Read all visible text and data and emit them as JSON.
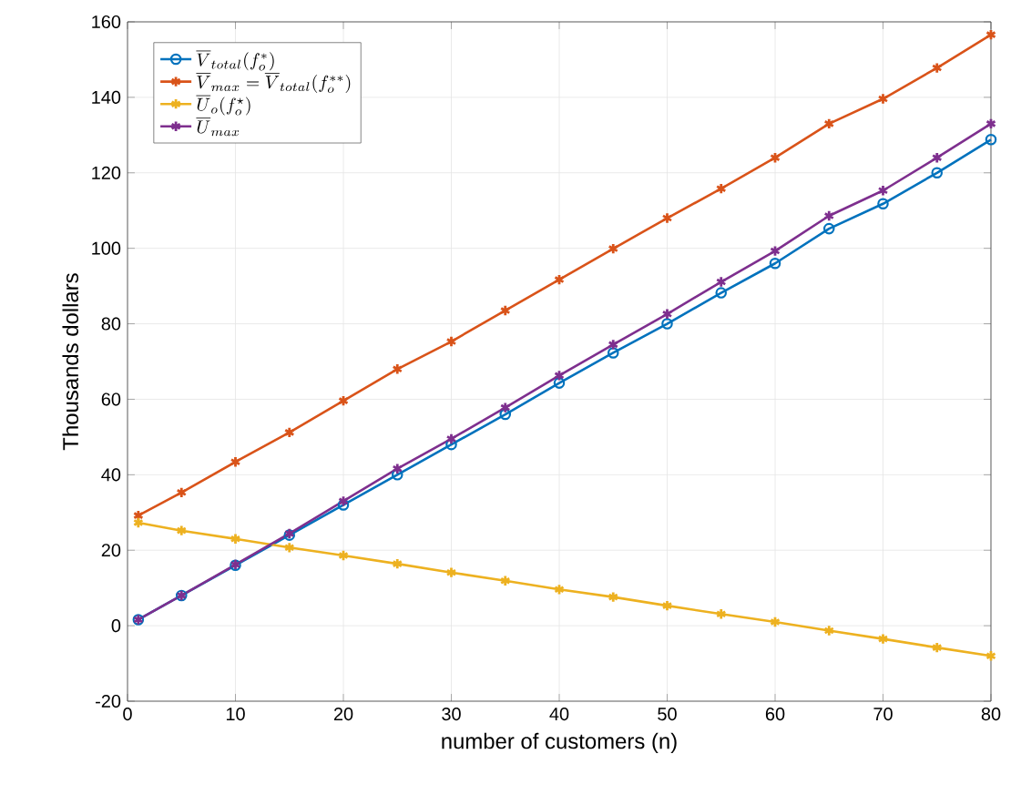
{
  "chart_data": {
    "type": "line",
    "xlabel": "number of customers (n)",
    "ylabel": "Thousands dollars",
    "x": [
      1,
      5,
      10,
      15,
      20,
      25,
      30,
      35,
      40,
      45,
      50,
      55,
      60,
      65,
      70,
      75,
      80
    ],
    "xlim": [
      0,
      80
    ],
    "ylim": [
      -20,
      160
    ],
    "xticks": [
      0,
      10,
      20,
      30,
      40,
      50,
      60,
      70,
      80
    ],
    "yticks": [
      -20,
      0,
      20,
      40,
      60,
      80,
      100,
      120,
      140,
      160
    ],
    "grid": true,
    "legend": "top left",
    "line_style": "solid",
    "series": [
      {
        "name": "\\overline{V}_{total}(f_o^{*})",
        "color": "#0072bd",
        "marker": "circle",
        "values": [
          1.6,
          8,
          16,
          24,
          32,
          40,
          48,
          56,
          64.3,
          72.3,
          80,
          88.2,
          96,
          105.2,
          111.8,
          120,
          128.8
        ]
      },
      {
        "name": "\\overline{V}_{max}=\\overline{V}_{total}(f_o^{**})",
        "color": "#d95319",
        "marker": "cross",
        "values": [
          29.2,
          35.3,
          43.4,
          51.2,
          59.6,
          68,
          75.3,
          83.5,
          91.7,
          99.9,
          108,
          115.8,
          124,
          133,
          139.6,
          147.8,
          156.6
        ]
      },
      {
        "name": "\\overline{U}_{o}(f_o^{\\star})",
        "color": "#edb120",
        "marker": "cross",
        "values": [
          27.3,
          25.2,
          23,
          20.7,
          18.6,
          16.4,
          14.1,
          11.9,
          9.6,
          7.6,
          5.3,
          3.1,
          1,
          -1.3,
          -3.5,
          -5.8,
          -8
        ]
      },
      {
        "name": "\\overline{U}_{max}",
        "color": "#7e2f8e",
        "marker": "cross",
        "values": [
          1.6,
          8,
          16.2,
          24.4,
          33,
          41.6,
          49.5,
          57.8,
          66.3,
          74.5,
          82.6,
          91.1,
          99.3,
          108.6,
          115.3,
          124,
          133
        ]
      }
    ]
  }
}
